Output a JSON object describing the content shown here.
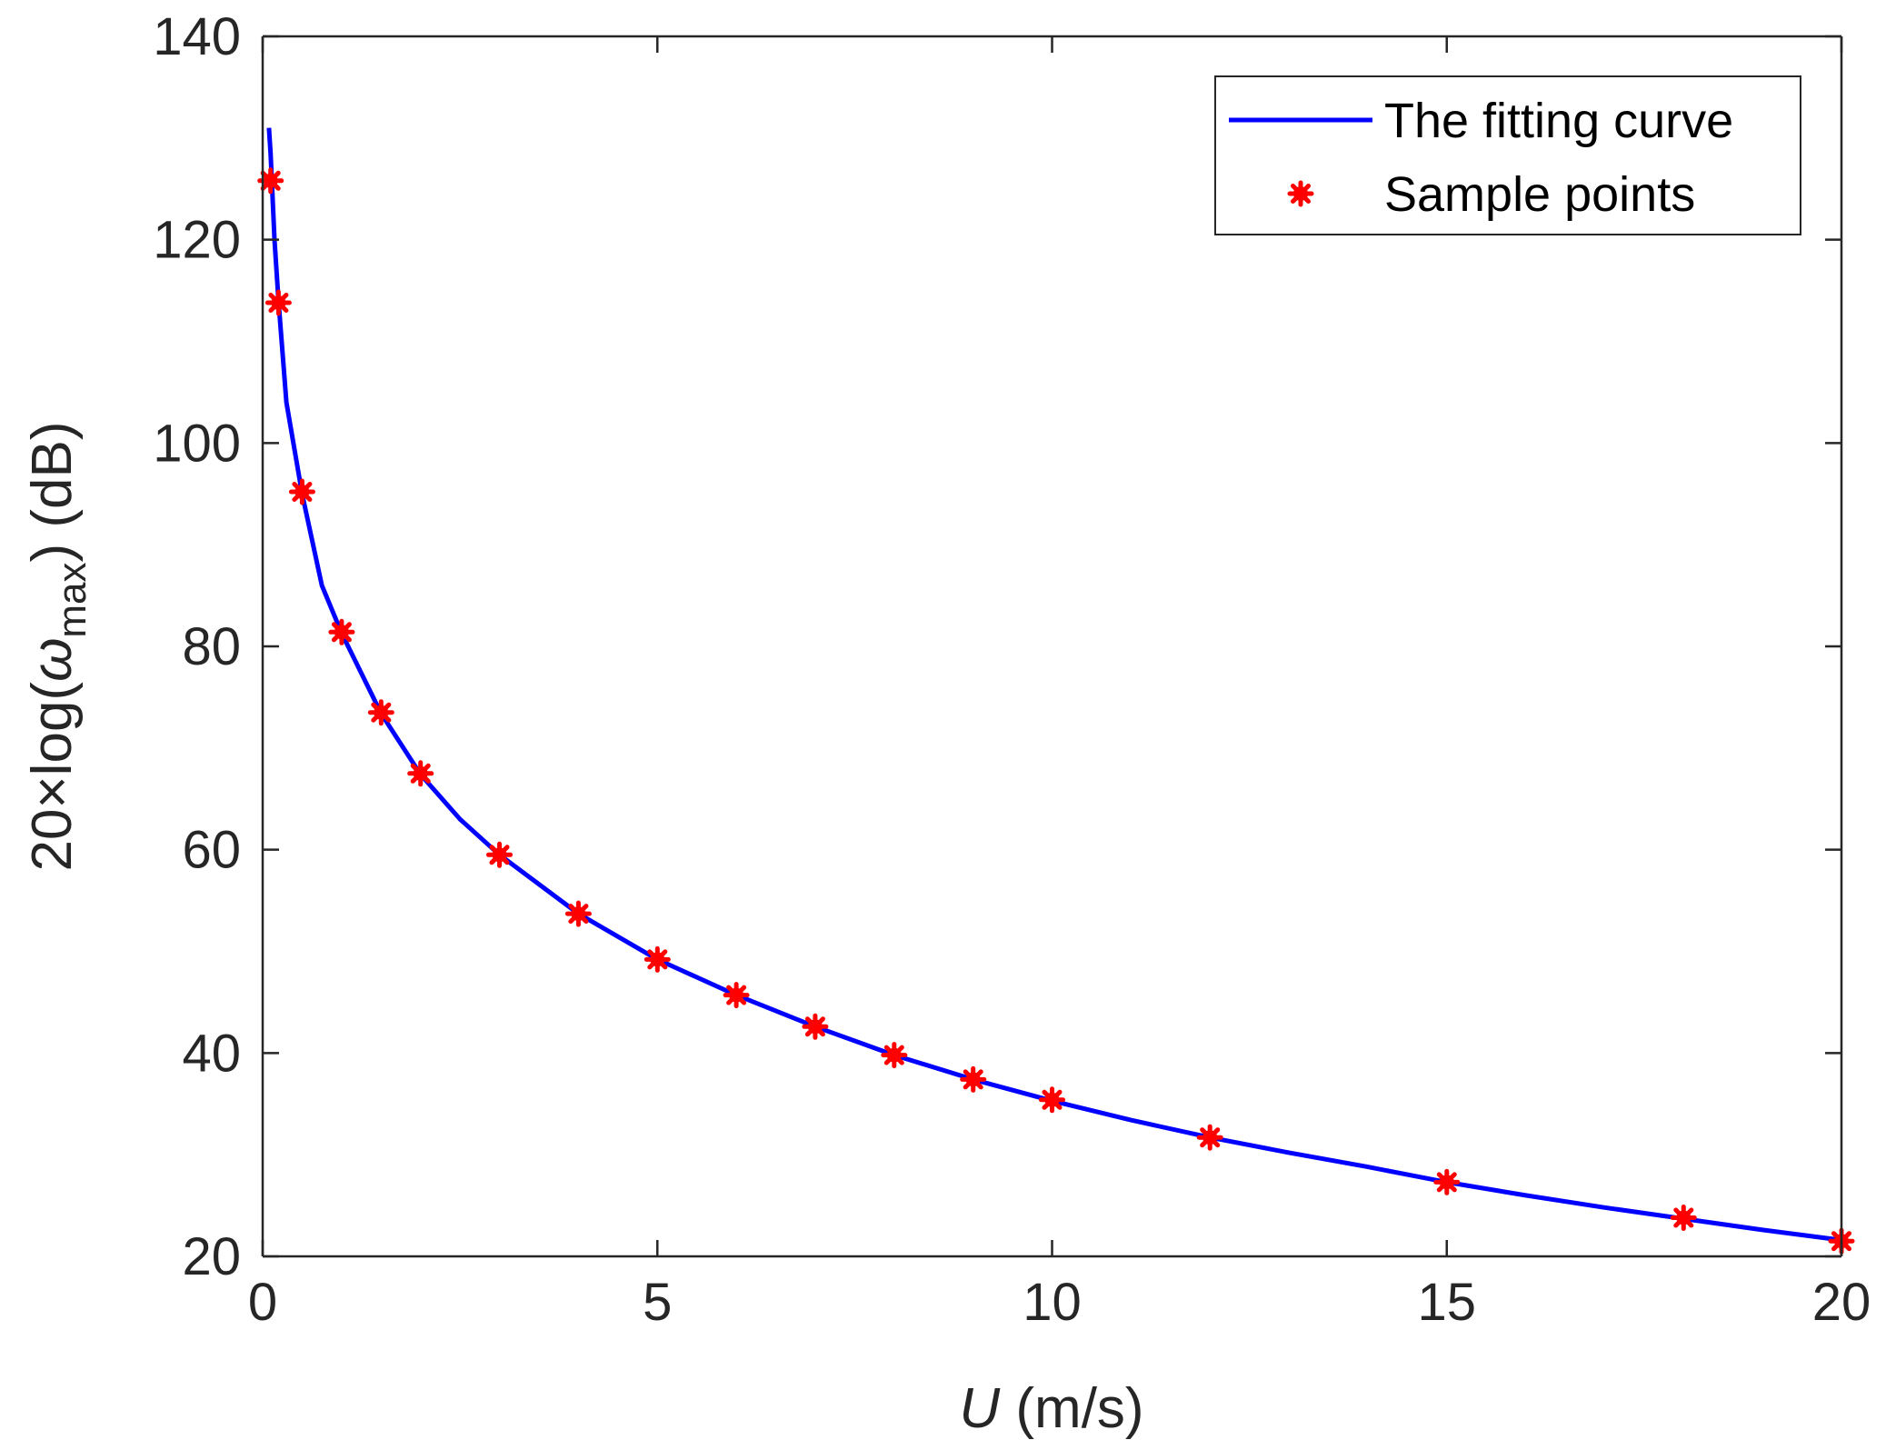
{
  "chart_data": {
    "type": "line",
    "title": "",
    "xlabel": {
      "italic": "U",
      "rest": " (m/s)"
    },
    "ylabel": {
      "prefix": "20×log(",
      "greek": "ω",
      "subscript": "max",
      "suffix": ") (dB)"
    },
    "xlim": [
      0,
      20
    ],
    "ylim": [
      20,
      140
    ],
    "xticks": [
      0,
      5,
      10,
      15,
      20
    ],
    "yticks": [
      20,
      40,
      60,
      80,
      100,
      120,
      140
    ],
    "xtick_labels": [
      "0",
      "5",
      "10",
      "15",
      "20"
    ],
    "ytick_labels": [
      "20",
      "40",
      "60",
      "80",
      "100",
      "120",
      "140"
    ],
    "grid": false,
    "legend_position": "top-right",
    "series": [
      {
        "name": "The fitting curve",
        "kind": "line",
        "color": "#0000ff",
        "x": [
          0.08,
          0.1,
          0.15,
          0.2,
          0.3,
          0.5,
          0.75,
          1,
          1.5,
          2,
          2.5,
          3,
          4,
          5,
          6,
          7,
          8,
          9,
          10,
          11,
          12,
          13,
          14,
          15,
          16,
          17,
          18,
          19,
          20
        ],
        "y": [
          131.0,
          128.5,
          120.0,
          114.0,
          104.0,
          95.0,
          86.0,
          81.3,
          73.4,
          67.4,
          63.0,
          59.5,
          53.7,
          49.2,
          45.7,
          42.6,
          39.8,
          37.4,
          35.3,
          33.4,
          31.7,
          30.2,
          28.8,
          27.3,
          26.0,
          24.8,
          23.7,
          22.6,
          21.6
        ]
      },
      {
        "name": "Sample points",
        "kind": "scatter",
        "color": "#ff0000",
        "x": [
          0.1,
          0.2,
          0.5,
          1,
          1.5,
          2,
          3,
          4,
          5,
          6,
          7,
          8,
          9,
          10,
          12,
          15,
          18,
          20
        ],
        "y": [
          125.8,
          113.8,
          95.2,
          81.4,
          73.5,
          67.5,
          59.5,
          53.7,
          49.2,
          45.7,
          42.6,
          39.8,
          37.4,
          35.4,
          31.7,
          27.3,
          23.8,
          21.5
        ]
      }
    ]
  }
}
